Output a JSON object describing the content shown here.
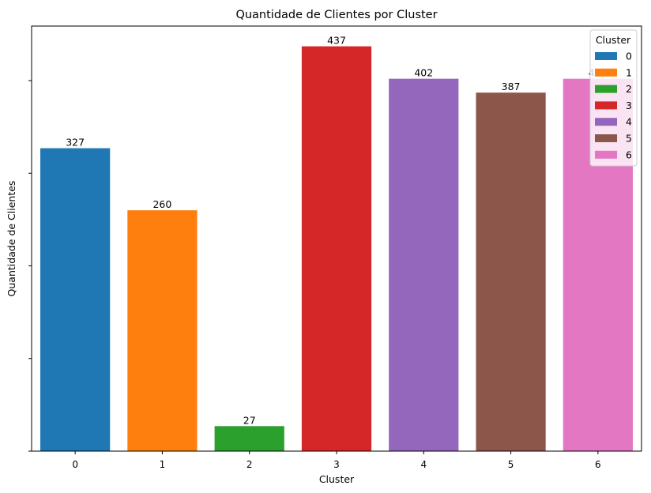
{
  "chart_data": {
    "type": "bar",
    "title": "Quantidade de Clientes por Cluster",
    "xlabel": "Cluster",
    "ylabel": "Quantidade de Clientes",
    "categories": [
      "0",
      "1",
      "2",
      "3",
      "4",
      "5",
      "6"
    ],
    "values": [
      327,
      260,
      27,
      437,
      402,
      387,
      402
    ],
    "data_labels": [
      "327",
      "260",
      "27",
      "437",
      "402",
      "387",
      "402"
    ],
    "colors": [
      "#1f77b4",
      "#ff7f0e",
      "#2ca02c",
      "#d62728",
      "#9467bd",
      "#8c564b",
      "#e377c2"
    ],
    "ylim": [
      0,
      458.85
    ],
    "y_ticks": [
      0,
      100,
      200,
      300,
      400
    ],
    "y_tick_labels_visible": false,
    "grid": false,
    "legend": {
      "title": "Cluster",
      "entries": [
        "0",
        "1",
        "2",
        "3",
        "4",
        "5",
        "6"
      ],
      "placement": "top-right"
    }
  }
}
